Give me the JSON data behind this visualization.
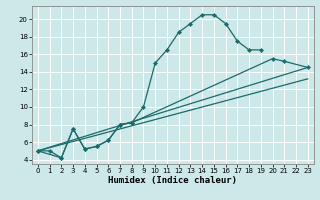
{
  "title": "",
  "xlabel": "Humidex (Indice chaleur)",
  "background_color": "#cce8e8",
  "grid_color": "#ffffff",
  "line_color": "#1a6b6b",
  "xlim": [
    -0.5,
    23.5
  ],
  "ylim": [
    3.5,
    21.5
  ],
  "xticks": [
    0,
    1,
    2,
    3,
    4,
    5,
    6,
    7,
    8,
    9,
    10,
    11,
    12,
    13,
    14,
    15,
    16,
    17,
    18,
    19,
    20,
    21,
    22,
    23
  ],
  "yticks": [
    4,
    6,
    8,
    10,
    12,
    14,
    16,
    18,
    20
  ],
  "curve1_x": [
    0,
    1,
    2,
    3,
    4,
    5,
    6,
    7,
    8,
    9,
    10,
    11,
    12,
    13,
    14,
    15,
    16,
    17,
    18,
    19
  ],
  "curve1_y": [
    5.0,
    5.0,
    4.2,
    7.5,
    5.2,
    5.5,
    6.2,
    8.0,
    8.2,
    10.0,
    15.0,
    16.5,
    18.5,
    19.5,
    20.5,
    20.5,
    19.5,
    17.5,
    16.5,
    16.5
  ],
  "line2_x": [
    0,
    2,
    3,
    4,
    5,
    6,
    7,
    8,
    20,
    21,
    23
  ],
  "line2_y": [
    5.0,
    4.2,
    7.5,
    5.2,
    5.5,
    6.2,
    8.0,
    8.2,
    15.5,
    15.2,
    14.5
  ],
  "line3_x": [
    0,
    23
  ],
  "line3_y": [
    5.0,
    14.5
  ],
  "line4_x": [
    0,
    23
  ],
  "line4_y": [
    5.0,
    13.2
  ]
}
